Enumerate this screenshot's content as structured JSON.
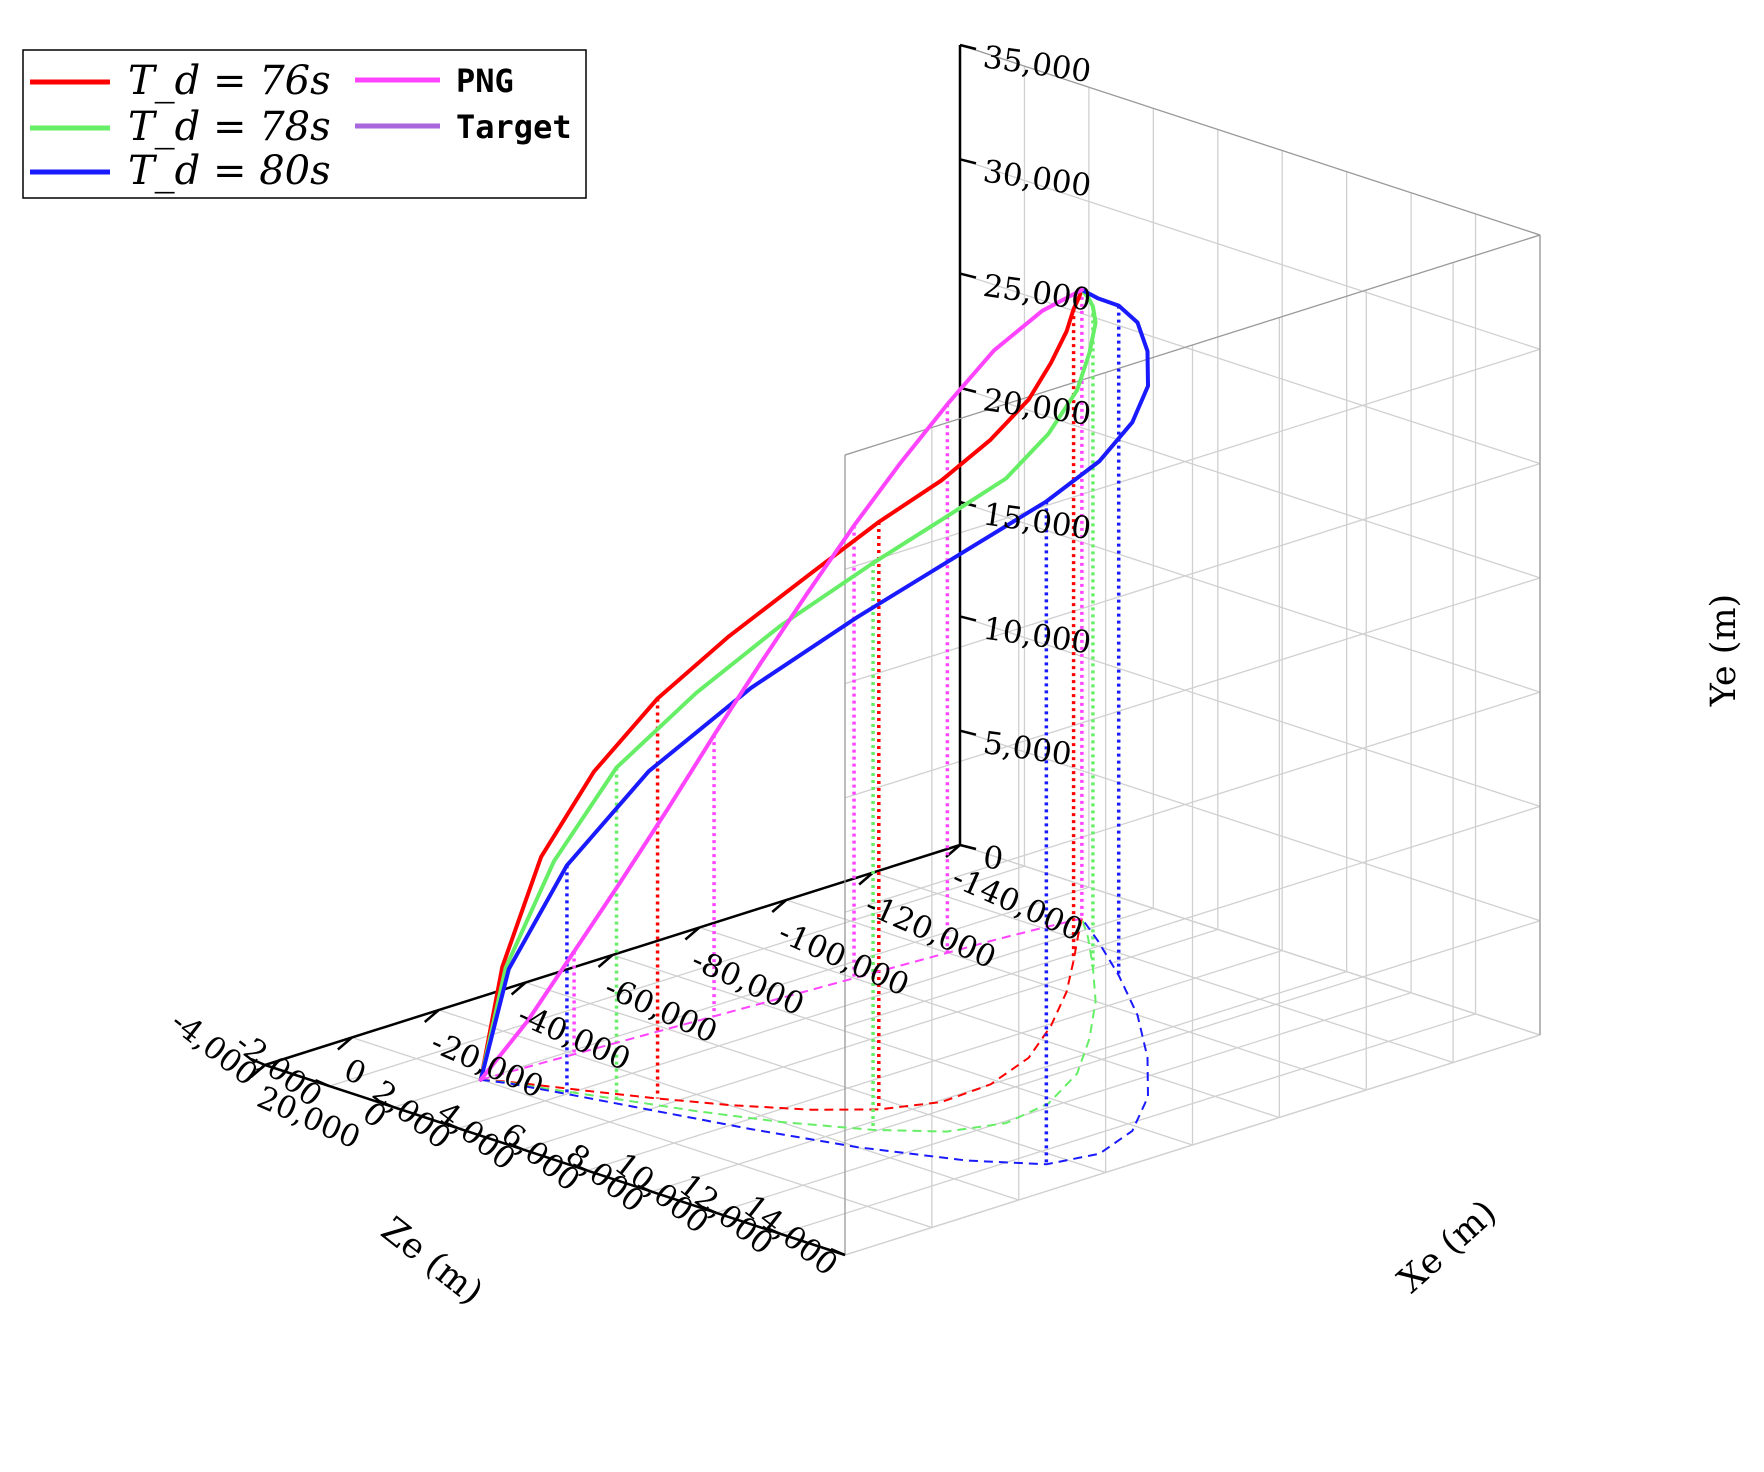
{
  "chart_data": {
    "type": "line3d",
    "title": "",
    "axes": {
      "x": {
        "label": "Xe (m)",
        "range": [
          -140000,
          20000
        ],
        "ticks": [
          -140000,
          -120000,
          -100000,
          -80000,
          -60000,
          -40000,
          -20000,
          0,
          20000
        ],
        "tick_labels": [
          "-140,000",
          "-120,000",
          "-100,000",
          "-80,000",
          "-60,000",
          "-40,000",
          "-20,000",
          "0",
          "20,000"
        ]
      },
      "y": {
        "label": "Ye (m)",
        "range": [
          0,
          35000
        ],
        "ticks": [
          0,
          5000,
          10000,
          15000,
          20000,
          25000,
          30000,
          35000
        ],
        "tick_labels": [
          "0",
          "5,000",
          "10,000",
          "15,000",
          "20,000",
          "25,000",
          "30,000",
          "35,000"
        ]
      },
      "z": {
        "label": "Ze (m)",
        "range": [
          -4000,
          14000
        ],
        "ticks": [
          -4000,
          -2000,
          0,
          2000,
          4000,
          6000,
          8000,
          10000,
          12000,
          14000
        ],
        "tick_labels": [
          "-4,000",
          "-2,000",
          "0",
          "2,000",
          "4,000",
          "6,000",
          "8,000",
          "10,000",
          "12,000",
          "14,000"
        ]
      }
    },
    "grid": true,
    "legend": {
      "position": "top-left",
      "entries": [
        {
          "label": "T_d = 76s",
          "color": "#ff0000"
        },
        {
          "label": "T_d = 78s",
          "color": "#66ee66"
        },
        {
          "label": "T_d = 80s",
          "color": "#1a1aff"
        },
        {
          "label": "PNG",
          "color": "#ff44ff"
        },
        {
          "label": "Target",
          "color": "#aa66dd"
        }
      ]
    },
    "series": [
      {
        "name": "T_d = 76s",
        "color": "#ff0000",
        "x": [
          0,
          -2000,
          -5000,
          -9000,
          -14000,
          -20000,
          -28000,
          -36000,
          -46000,
          -58000,
          -72000,
          -86000,
          -100000,
          -112000,
          -122000,
          -128000
        ],
        "y": [
          0,
          5000,
          10000,
          14000,
          17500,
          20500,
          23500,
          25700,
          27200,
          28200,
          28800,
          29000,
          28900,
          28500,
          27800,
          27500
        ],
        "z": [
          0,
          400,
          1200,
          2300,
          3600,
          5000,
          6500,
          7500,
          8100,
          8000,
          7300,
          6100,
          4700,
          3300,
          2100,
          1400
        ],
        "drop_lines_at_index": [
          4,
          7,
          13
        ]
      },
      {
        "name": "T_d = 78s",
        "color": "#66ee66",
        "x": [
          0,
          -2000,
          -5000,
          -9000,
          -14000,
          -20000,
          -28000,
          -36000,
          -46000,
          -58000,
          -72000,
          -86000,
          -100000,
          -112000,
          -122000,
          -128000
        ],
        "y": [
          0,
          5000,
          10000,
          14500,
          18300,
          21700,
          24800,
          26900,
          28200,
          29300,
          29900,
          30000,
          29700,
          28900,
          28000,
          27500
        ],
        "z": [
          0,
          500,
          1600,
          3000,
          4800,
          6600,
          8400,
          9600,
          10100,
          9800,
          8800,
          7300,
          5600,
          3900,
          2400,
          1400
        ],
        "drop_lines_at_index": [
          3,
          6,
          13
        ]
      },
      {
        "name": "T_d = 80s",
        "color": "#1a1aff",
        "x": [
          0,
          -2000,
          -5000,
          -9000,
          -14000,
          -20000,
          -28000,
          -36000,
          -46000,
          -58000,
          -72000,
          -86000,
          -100000,
          -112000,
          -122000,
          -128000
        ],
        "y": [
          0,
          5000,
          10000,
          14800,
          19300,
          23200,
          26700,
          29000,
          30300,
          31000,
          31100,
          30900,
          30300,
          29300,
          28100,
          27500
        ],
        "z": [
          0,
          600,
          2000,
          4000,
          6500,
          9000,
          11300,
          12700,
          13000,
          12400,
          11000,
          9100,
          6900,
          4700,
          2700,
          1400
        ],
        "drop_lines_at_index": [
          2,
          7,
          13
        ]
      },
      {
        "name": "PNG",
        "color": "#ff44ff",
        "x": [
          0,
          -10000,
          -20000,
          -30000,
          -40000,
          -50000,
          -60000,
          -70000,
          -80000,
          -90000,
          -100000,
          -110000,
          -120000,
          -128000
        ],
        "y": [
          0,
          2000,
          4500,
          7000,
          9600,
          12300,
          14900,
          17400,
          19800,
          22000,
          24000,
          25800,
          27000,
          27500
        ],
        "z": [
          0,
          100,
          200,
          300,
          400,
          500,
          600,
          700,
          800,
          900,
          1000,
          1100,
          1250,
          1400
        ],
        "drop_lines_at_index": [
          2,
          5,
          8,
          10,
          13
        ]
      }
    ]
  }
}
